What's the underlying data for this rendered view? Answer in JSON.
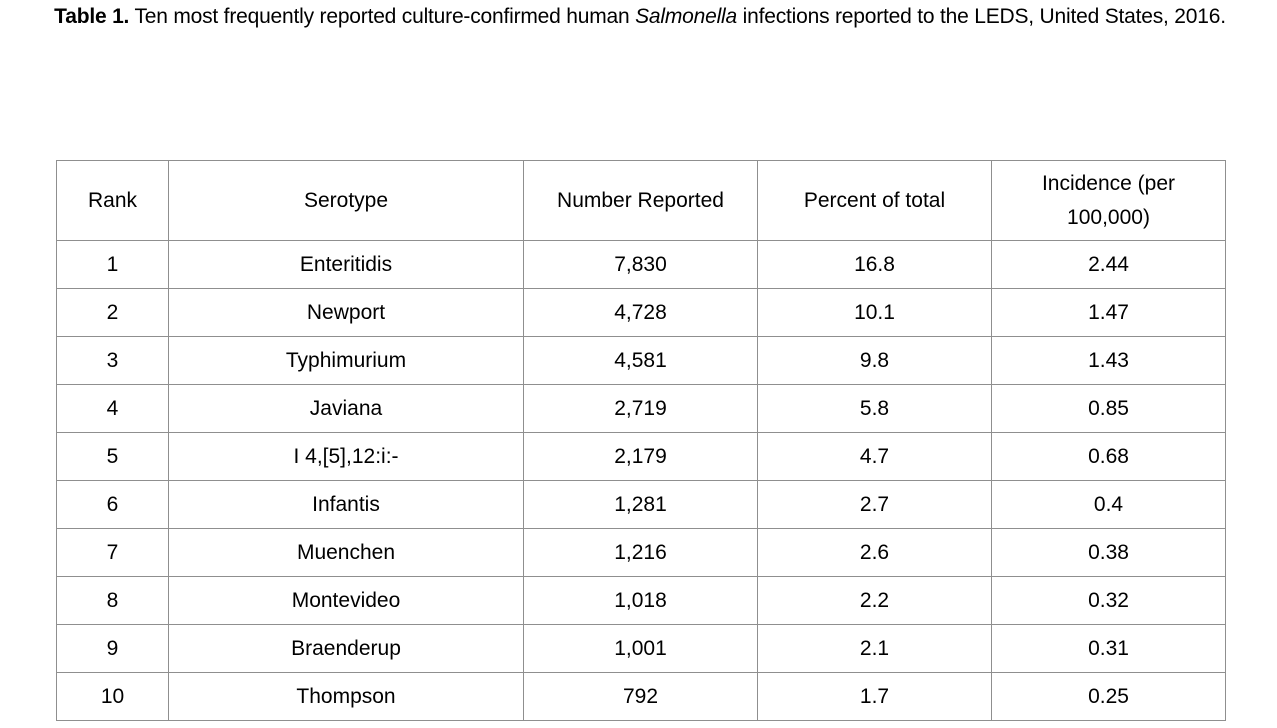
{
  "caption": {
    "label": "Table 1.",
    "text_before": "Ten most frequently reported culture-confirmed human",
    "italic": "Salmonella",
    "text_after": "infections reported to the LEDS, United States, 2016."
  },
  "table": {
    "headers": [
      "Rank",
      "Serotype",
      "Number Reported",
      "Percent of total",
      "Incidence (per 100,000)"
    ],
    "rows": [
      [
        "1",
        "Enteritidis",
        "7,830",
        "16.8",
        "2.44"
      ],
      [
        "2",
        "Newport",
        "4,728",
        "10.1",
        "1.47"
      ],
      [
        "3",
        "Typhimurium",
        "4,581",
        "9.8",
        "1.43"
      ],
      [
        "4",
        "Javiana",
        "2,719",
        "5.8",
        "0.85"
      ],
      [
        "5",
        "I 4,[5],12:i:-",
        "2,179",
        "4.7",
        "0.68"
      ],
      [
        "6",
        "Infantis",
        "1,281",
        "2.7",
        "0.4"
      ],
      [
        "7",
        "Muenchen",
        "1,216",
        "2.6",
        "0.38"
      ],
      [
        "8",
        "Montevideo",
        "1,018",
        "2.2",
        "0.32"
      ],
      [
        "9",
        "Braenderup",
        "1,001",
        "2.1",
        "0.31"
      ],
      [
        "10",
        "Thompson",
        "792",
        "1.7",
        "0.25"
      ]
    ]
  }
}
